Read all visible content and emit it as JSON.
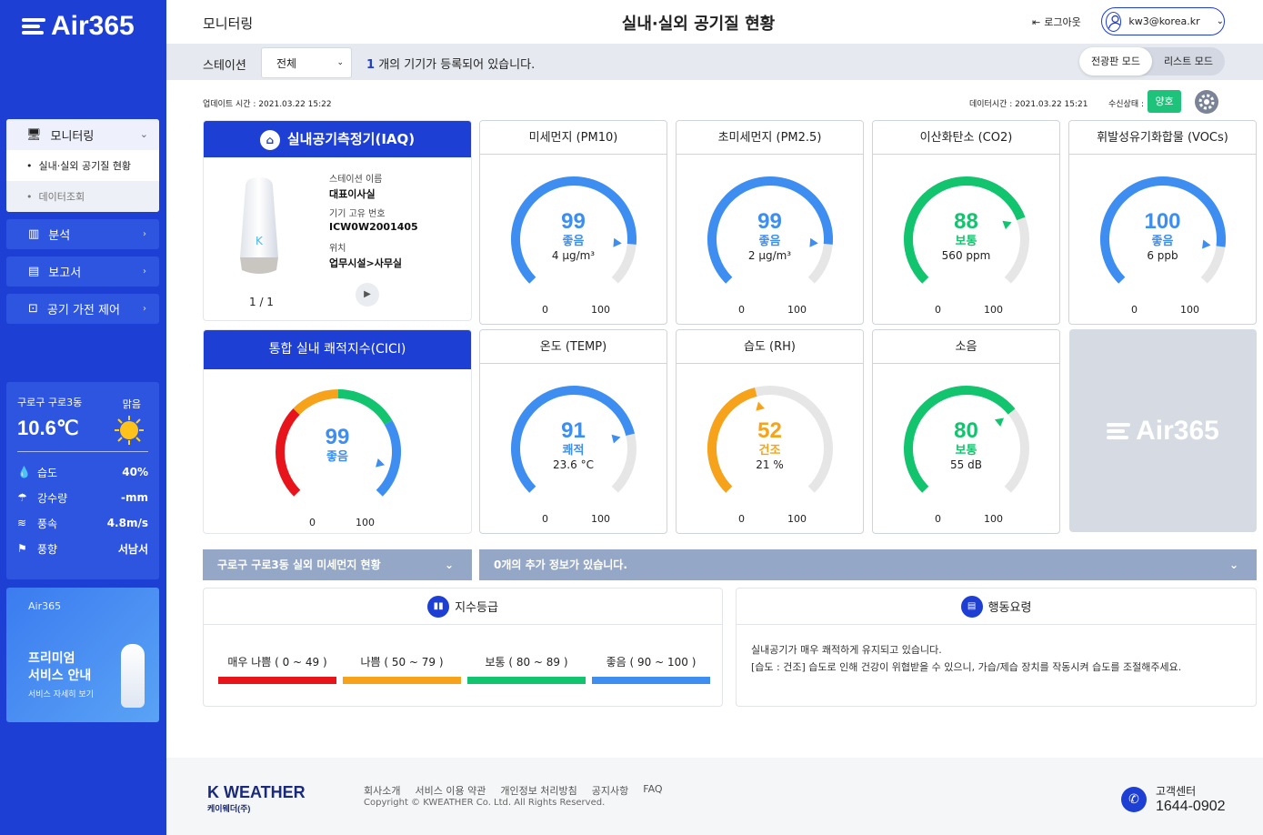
{
  "brand": "Air365",
  "sidebar": {
    "menu": {
      "head": "모니터링",
      "sub1": "실내·실외 공기질 현황",
      "sub2": "데이터조회"
    },
    "items": [
      {
        "label": "분석"
      },
      {
        "label": "보고서"
      },
      {
        "label": "공기 가전 제어"
      }
    ],
    "weather": {
      "location": "구로구 구로3동",
      "condition": "맑음",
      "temp": "10.6℃",
      "rows": [
        {
          "label": "습도",
          "value": "40%"
        },
        {
          "label": "강수량",
          "value": "-mm"
        },
        {
          "label": "풍속",
          "value": "4.8m/s"
        },
        {
          "label": "풍향",
          "value": "서남서"
        }
      ]
    },
    "promo": {
      "tag": "Air365",
      "line1": "프리미엄",
      "line2": "서비스 안내",
      "sub": "서비스 자세히 보기"
    }
  },
  "header": {
    "section": "모니터링",
    "title": "실내·실외 공기질 현황",
    "logout": "로그아웃",
    "user": "kw3@korea.kr"
  },
  "toolbar": {
    "station_label": "스테이션",
    "station_value": "전체",
    "count": "1",
    "count_text": "개의 기기가 등록되어 있습니다.",
    "mode_board": "전광판 모드",
    "mode_list": "리스트 모드"
  },
  "status": {
    "updated": "업데이트 시간 : 2021.03.22 15:22",
    "datatime": "데이터시간 : 2021.03.22 15:21",
    "rx_label": "수신상태 :",
    "rx_value": "양호"
  },
  "iaq": {
    "title": "실내공기측정기(IAQ)",
    "station_label": "스테이션 이름",
    "station": "대표이사실",
    "serial_label": "기기 고유 번호",
    "serial": "ICW0W2001405",
    "loc_label": "위치",
    "loc": "업무시설>사무실",
    "page": "1 / 1"
  },
  "cici": {
    "title": "통합 실내 쾌적지수(CICI)",
    "value": "99",
    "label": "좋음",
    "min": "0",
    "max": "100"
  },
  "sensors": [
    {
      "title": "미세먼지 (PM10)",
      "value": "99",
      "label": "좋음",
      "unit": "4 μg/m³",
      "color": "#3d8ef0",
      "fill": 0.99,
      "min": "0",
      "max": "100"
    },
    {
      "title": "초미세먼지 (PM2.5)",
      "value": "99",
      "label": "좋음",
      "unit": "2 μg/m³",
      "color": "#3d8ef0",
      "fill": 0.99,
      "min": "0",
      "max": "100"
    },
    {
      "title": "이산화탄소 (CO2)",
      "value": "88",
      "label": "보통",
      "unit": "560 ppm",
      "color": "#12c46e",
      "fill": 0.88,
      "min": "0",
      "max": "100"
    },
    {
      "title": "휘발성유기화합물 (VOCs)",
      "value": "100",
      "label": "좋음",
      "unit": "6 ppb",
      "color": "#3d8ef0",
      "fill": 1.0,
      "min": "0",
      "max": "100"
    },
    {
      "title": "온도 (TEMP)",
      "value": "91",
      "label": "쾌적",
      "unit": "23.6 °C",
      "color": "#3d8ef0",
      "fill": 0.91,
      "min": "0",
      "max": "100"
    },
    {
      "title": "습도 (RH)",
      "value": "52",
      "label": "건조",
      "unit": "21 %",
      "color": "#f7a21b",
      "fill": 0.52,
      "min": "0",
      "max": "100"
    },
    {
      "title": "소음",
      "value": "80",
      "label": "보통",
      "unit": "55 dB",
      "color": "#12c46e",
      "fill": 0.8,
      "min": "0",
      "max": "100"
    }
  ],
  "strips": {
    "outdoor": "구로구 구로3동 실외 미세먼지 현황",
    "extra": "0개의 추가 정보가 있습니다."
  },
  "grades": {
    "title": "지수등급",
    "items": [
      {
        "label": "매우 나쁨 ( 0 ~ 49 )",
        "color": "#e8141c"
      },
      {
        "label": "나쁨 ( 50 ~ 79 )",
        "color": "#f7a21b"
      },
      {
        "label": "보통 ( 80 ~ 89 )",
        "color": "#12c46e"
      },
      {
        "label": "좋음 ( 90 ~ 100 )",
        "color": "#3d8ef0"
      }
    ]
  },
  "actions": {
    "title": "행동요령",
    "line1": "실내공기가 매우 쾌적하게 유지되고 있습니다.",
    "line2": "[습도 : 건조] 습도로 인해 건강이 위협받을 수 있으니, 가습/제습 장치를 작동시켜 습도를 조절해주세요."
  },
  "footer": {
    "brand": "K WEATHER",
    "brand_sub": "케이웨더(주)",
    "links": [
      "회사소개",
      "서비스 이용 약관",
      "개인정보 처리방침",
      "공지사항",
      "FAQ"
    ],
    "copyright": "Copyright © KWEATHER Co. Ltd. All Rights Reserved.",
    "cs_label": "고객센터",
    "cs_phone": "1644-0902"
  }
}
